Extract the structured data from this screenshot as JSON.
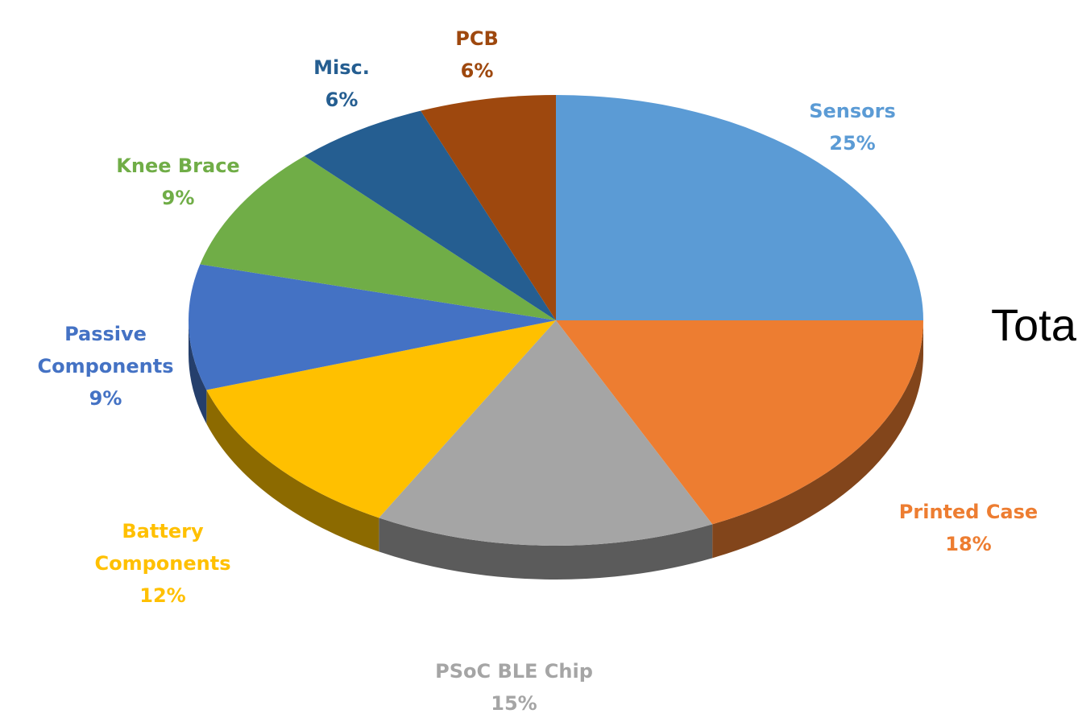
{
  "chart_data": {
    "type": "pie",
    "style": "3d",
    "start_angle_deg": 90,
    "direction": "clockwise",
    "slices": [
      {
        "label": "Sensors",
        "percent_label": "25%",
        "value": 25,
        "color": "#5b9bd5"
      },
      {
        "label": "Printed Case",
        "percent_label": "18%",
        "value": 18,
        "color": "#ed7d31"
      },
      {
        "label": "PSoC BLE Chip",
        "percent_label": "15%",
        "value": 15,
        "color": "#a5a5a5"
      },
      {
        "label": "Battery Components",
        "percent_label": "12%",
        "value": 12,
        "color": "#ffc000"
      },
      {
        "label": "Passive Components",
        "percent_label": "9%",
        "value": 9,
        "color": "#4472c4"
      },
      {
        "label": "Knee Brace",
        "percent_label": "9%",
        "value": 9,
        "color": "#70ad47"
      },
      {
        "label": "Misc.",
        "percent_label": "6%",
        "value": 6,
        "color": "#255e91"
      },
      {
        "label": "PCB",
        "percent_label": "6%",
        "value": 6,
        "color": "#9e480e"
      }
    ]
  },
  "side_text": "Tota"
}
